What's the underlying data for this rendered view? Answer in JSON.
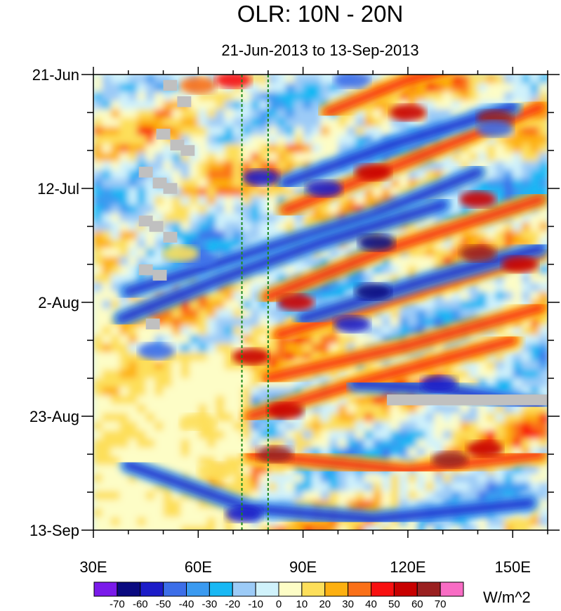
{
  "chart_data": {
    "type": "heatmap",
    "title": "OLR: 10N - 20N",
    "subtitle": "21-Jun-2013 to 13-Sep-2013",
    "x_axis": {
      "label": "",
      "range": [
        30,
        160
      ],
      "ticks": [
        {
          "value": 30,
          "label": "30E"
        },
        {
          "value": 60,
          "label": "60E"
        },
        {
          "value": 90,
          "label": "90E"
        },
        {
          "value": 120,
          "label": "120E"
        },
        {
          "value": 150,
          "label": "150E"
        }
      ],
      "minor_step": 10
    },
    "y_axis": {
      "label": "",
      "unit": "days since 21-Jun-2013",
      "range": [
        0,
        84
      ],
      "reversed": true,
      "ticks": [
        {
          "value": 0,
          "label": "21-Jun"
        },
        {
          "value": 21,
          "label": "12-Jul"
        },
        {
          "value": 42,
          "label": "2-Aug"
        },
        {
          "value": 63,
          "label": "23-Aug"
        },
        {
          "value": 84,
          "label": "13-Sep"
        }
      ],
      "minor_step": 7
    },
    "reference_lines": [
      {
        "orientation": "vertical",
        "x": 72.5,
        "style": "dashed",
        "color": "#1a8a1a"
      },
      {
        "orientation": "vertical",
        "x": 80,
        "style": "dashed",
        "color": "#1a8a1a"
      }
    ],
    "missing_data_boxes": [
      {
        "lon": [
          50,
          54
        ],
        "day": [
          1,
          3
        ]
      },
      {
        "lon": [
          54,
          58
        ],
        "day": [
          4,
          6
        ]
      },
      {
        "lon": [
          48,
          52
        ],
        "day": [
          10,
          12
        ]
      },
      {
        "lon": [
          52,
          56
        ],
        "day": [
          12,
          14
        ]
      },
      {
        "lon": [
          55,
          59
        ],
        "day": [
          13,
          15
        ]
      },
      {
        "lon": [
          43,
          47
        ],
        "day": [
          17,
          19
        ]
      },
      {
        "lon": [
          47,
          51
        ],
        "day": [
          19,
          21
        ]
      },
      {
        "lon": [
          50,
          54
        ],
        "day": [
          20,
          22
        ]
      },
      {
        "lon": [
          43,
          47
        ],
        "day": [
          26,
          28
        ]
      },
      {
        "lon": [
          46,
          50
        ],
        "day": [
          27,
          29
        ]
      },
      {
        "lon": [
          50,
          54
        ],
        "day": [
          29,
          31
        ]
      },
      {
        "lon": [
          43,
          47
        ],
        "day": [
          35,
          37
        ]
      },
      {
        "lon": [
          47,
          51
        ],
        "day": [
          36,
          38
        ]
      },
      {
        "lon": [
          45,
          49
        ],
        "day": [
          45,
          47
        ]
      },
      {
        "lon": [
          114,
          160
        ],
        "day": [
          59,
          61
        ]
      }
    ],
    "colorbar": {
      "unit_label": "W/m^2",
      "levels": [
        "-70",
        "-60",
        "-50",
        "-40",
        "-30",
        "-20",
        "-10",
        "0",
        "10",
        "20",
        "30",
        "40",
        "50",
        "60",
        "70"
      ],
      "colors": [
        "#7a1aea",
        "#0a0a80",
        "#1c1cc8",
        "#3c6ee8",
        "#3a9af0",
        "#18b8f4",
        "#9ccbf7",
        "#d0f2fb",
        "#fdfdc6",
        "#fddf5a",
        "#fdb010",
        "#fa7018",
        "#f81010",
        "#c80000",
        "#9a2020",
        "#f86cc4"
      ]
    },
    "series": [
      {
        "name": "positive anomaly band",
        "points": [
          [
            97,
            7
          ],
          [
            120,
            1
          ],
          [
            150,
            -4
          ]
        ],
        "sign": "positive"
      },
      {
        "name": "positive anomaly band",
        "points": [
          [
            85,
            25
          ],
          [
            120,
            16
          ],
          [
            158,
            6
          ]
        ],
        "sign": "positive"
      },
      {
        "name": "positive anomaly band",
        "points": [
          [
            80,
            41
          ],
          [
            115,
            32
          ],
          [
            158,
            23
          ]
        ],
        "sign": "positive"
      },
      {
        "name": "positive anomaly band",
        "points": [
          [
            83,
            48
          ],
          [
            118,
            41
          ],
          [
            158,
            33
          ]
        ],
        "sign": "positive"
      },
      {
        "name": "positive anomaly band",
        "points": [
          [
            80,
            56
          ],
          [
            120,
            50
          ],
          [
            158,
            43
          ]
        ],
        "sign": "positive"
      },
      {
        "name": "positive anomaly band",
        "points": [
          [
            75,
            63
          ],
          [
            105,
            57
          ],
          [
            150,
            49
          ]
        ],
        "sign": "positive"
      },
      {
        "name": "positive anomaly band",
        "points": [
          [
            75,
            70
          ],
          [
            120,
            73
          ],
          [
            158,
            70
          ]
        ],
        "sign": "positive"
      },
      {
        "name": "negative anomaly band",
        "points": [
          [
            40,
            40
          ],
          [
            75,
            33
          ],
          [
            110,
            26
          ],
          [
            140,
            18
          ]
        ],
        "sign": "negative"
      },
      {
        "name": "negative anomaly band",
        "points": [
          [
            38,
            45
          ],
          [
            65,
            38
          ],
          [
            95,
            31
          ],
          [
            130,
            24
          ]
        ],
        "sign": "negative"
      },
      {
        "name": "negative anomaly band",
        "points": [
          [
            85,
            20
          ],
          [
            115,
            13
          ],
          [
            150,
            6
          ]
        ],
        "sign": "negative"
      },
      {
        "name": "negative anomaly band",
        "points": [
          [
            90,
            45
          ],
          [
            125,
            38
          ],
          [
            158,
            32
          ]
        ],
        "sign": "negative"
      },
      {
        "name": "negative anomaly band",
        "points": [
          [
            105,
            57
          ],
          [
            130,
            58
          ],
          [
            158,
            61
          ]
        ],
        "sign": "negative"
      },
      {
        "name": "negative anomaly band",
        "points": [
          [
            40,
            72
          ],
          [
            75,
            80
          ],
          [
            110,
            82
          ],
          [
            155,
            79
          ]
        ],
        "sign": "negative"
      }
    ],
    "anomaly_cells": [
      {
        "lon": 120,
        "day": 7,
        "value": 55
      },
      {
        "lon": 145,
        "day": 8,
        "value": 60
      },
      {
        "lon": 110,
        "day": 18,
        "value": 50
      },
      {
        "lon": 140,
        "day": 23,
        "value": 55
      },
      {
        "lon": 140,
        "day": 33,
        "value": 60
      },
      {
        "lon": 152,
        "day": 35,
        "value": 55
      },
      {
        "lon": 88,
        "day": 42,
        "value": 50
      },
      {
        "lon": 75,
        "day": 52,
        "value": 50
      },
      {
        "lon": 85,
        "day": 62,
        "value": 55
      },
      {
        "lon": 82,
        "day": 70,
        "value": 65
      },
      {
        "lon": 132,
        "day": 71,
        "value": 60
      },
      {
        "lon": 142,
        "day": 69,
        "value": 50
      },
      {
        "lon": 110,
        "day": 40,
        "value": -70
      },
      {
        "lon": 111,
        "day": 31,
        "value": -65
      },
      {
        "lon": 104,
        "day": 46,
        "value": -60
      },
      {
        "lon": 129,
        "day": 57,
        "value": -60
      },
      {
        "lon": 73,
        "day": 81,
        "value": -55
      },
      {
        "lon": 78,
        "day": 19,
        "value": -60
      },
      {
        "lon": 96,
        "day": 21,
        "value": -60
      },
      {
        "lon": 104,
        "day": 1,
        "value": -50
      },
      {
        "lon": 145,
        "day": 10,
        "value": -45
      },
      {
        "lon": 60,
        "day": 34,
        "value": -50
      },
      {
        "lon": 48,
        "day": 51,
        "value": -45
      },
      {
        "lon": 55,
        "day": 33,
        "value": 15
      },
      {
        "lon": 60,
        "day": 64,
        "value": 15
      },
      {
        "lon": 65,
        "day": 73,
        "value": 15
      },
      {
        "lon": 60,
        "day": 2,
        "value": 30
      },
      {
        "lon": 70,
        "day": 1,
        "value": 40
      }
    ]
  }
}
